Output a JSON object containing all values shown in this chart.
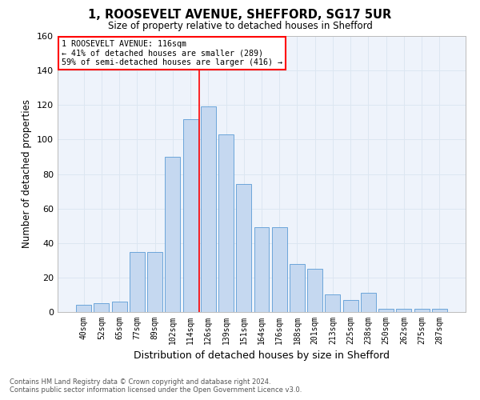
{
  "title1": "1, ROOSEVELT AVENUE, SHEFFORD, SG17 5UR",
  "title2": "Size of property relative to detached houses in Shefford",
  "xlabel": "Distribution of detached houses by size in Shefford",
  "ylabel": "Number of detached properties",
  "categories": [
    "40sqm",
    "52sqm",
    "65sqm",
    "77sqm",
    "89sqm",
    "102sqm",
    "114sqm",
    "126sqm",
    "139sqm",
    "151sqm",
    "164sqm",
    "176sqm",
    "188sqm",
    "201sqm",
    "213sqm",
    "225sqm",
    "238sqm",
    "250sqm",
    "262sqm",
    "275sqm",
    "287sqm"
  ],
  "values": [
    4,
    5,
    6,
    35,
    35,
    90,
    112,
    119,
    103,
    74,
    49,
    49,
    28,
    25,
    10,
    7,
    11,
    2,
    2,
    2,
    2
  ],
  "bar_color": "#c5d8f0",
  "bar_edge_color": "#5b9bd5",
  "highlight_index": 6,
  "highlight_color": "#ff0000",
  "annotation_line1": "1 ROOSEVELT AVENUE: 116sqm",
  "annotation_line2": "← 41% of detached houses are smaller (289)",
  "annotation_line3": "59% of semi-detached houses are larger (416) →",
  "ylim": [
    0,
    160
  ],
  "yticks": [
    0,
    20,
    40,
    60,
    80,
    100,
    120,
    140,
    160
  ],
  "grid_color": "#dce6f1",
  "background_color": "#eef3fb",
  "footnote_line1": "Contains HM Land Registry data © Crown copyright and database right 2024.",
  "footnote_line2": "Contains public sector information licensed under the Open Government Licence v3.0."
}
